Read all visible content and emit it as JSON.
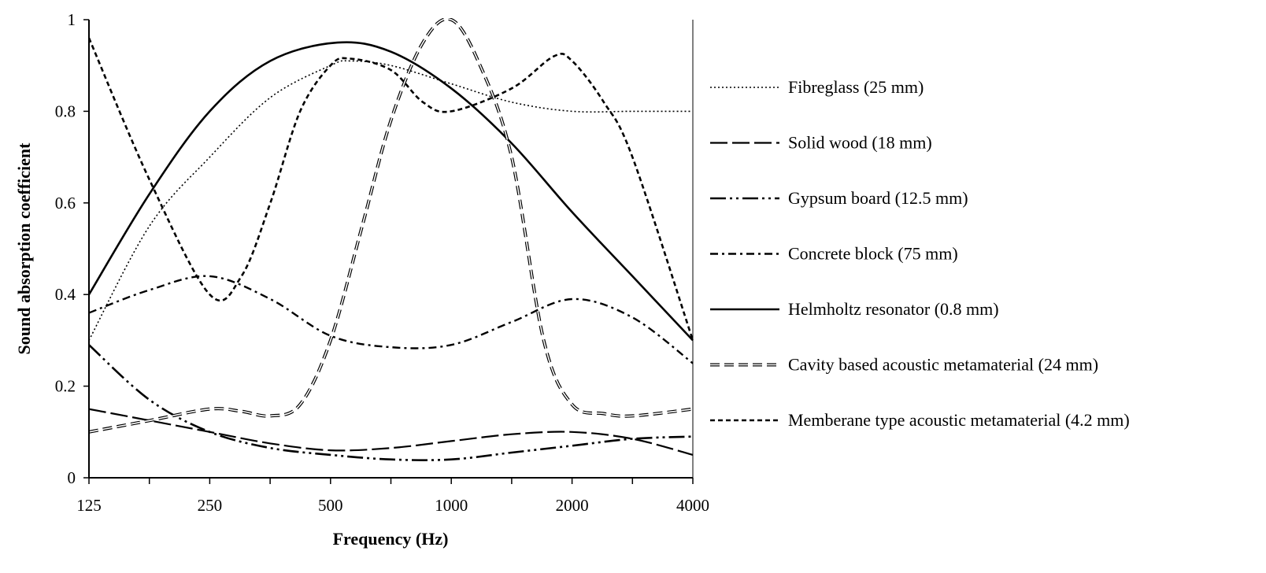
{
  "chart_data": {
    "type": "line",
    "title": "",
    "xlabel": "Frequency (Hz)",
    "ylabel": "Sound absorption coefficient",
    "x_scale": "log2",
    "xlim": [
      125,
      4000
    ],
    "ylim": [
      0,
      1
    ],
    "x_ticks": [
      125,
      250,
      500,
      1000,
      2000,
      4000
    ],
    "y_ticks": [
      0,
      0.2,
      0.4,
      0.6,
      0.8,
      1
    ],
    "y_tick_labels": [
      "0",
      "0.2",
      "0.4",
      "0.6",
      "0.8",
      "1"
    ],
    "grid": false,
    "legend_position": "right",
    "series": [
      {
        "name": "Fibreglass (25 mm)",
        "style": "dotted",
        "x": [
          125,
          177,
          250,
          354,
          500,
          560,
          707,
          1000,
          1414,
          2000,
          2828,
          4000
        ],
        "y": [
          0.3,
          0.55,
          0.7,
          0.83,
          0.9,
          0.91,
          0.9,
          0.86,
          0.82,
          0.8,
          0.8,
          0.8
        ]
      },
      {
        "name": "Solid wood (18 mm)",
        "style": "long-dash",
        "x": [
          125,
          177,
          250,
          354,
          500,
          707,
          1000,
          1414,
          2000,
          2828,
          4000
        ],
        "y": [
          0.15,
          0.125,
          0.1,
          0.075,
          0.06,
          0.065,
          0.08,
          0.095,
          0.1,
          0.085,
          0.05
        ]
      },
      {
        "name": "Gypsum board (12.5 mm)",
        "style": "dash-dot-dot",
        "x": [
          125,
          177,
          250,
          354,
          500,
          707,
          1000,
          1414,
          2000,
          2828,
          4000
        ],
        "y": [
          0.29,
          0.17,
          0.1,
          0.065,
          0.05,
          0.04,
          0.04,
          0.055,
          0.07,
          0.085,
          0.09
        ]
      },
      {
        "name": "Concrete block (75 mm)",
        "style": "dash-dot",
        "x": [
          125,
          177,
          250,
          354,
          500,
          707,
          1000,
          1414,
          2000,
          2828,
          4000
        ],
        "y": [
          0.36,
          0.41,
          0.44,
          0.39,
          0.31,
          0.285,
          0.29,
          0.34,
          0.39,
          0.35,
          0.25
        ]
      },
      {
        "name": "Helmholtz resonator (0.8 mm)",
        "style": "solid",
        "x": [
          125,
          177,
          250,
          354,
          520,
          707,
          1000,
          1414,
          2000,
          2828,
          4000
        ],
        "y": [
          0.4,
          0.62,
          0.8,
          0.91,
          0.95,
          0.93,
          0.85,
          0.73,
          0.58,
          0.44,
          0.3
        ]
      },
      {
        "name": "Cavity based acoustic metamaterial (24 mm)",
        "style": "double-dash",
        "x": [
          125,
          177,
          250,
          300,
          354,
          420,
          500,
          600,
          707,
          850,
          1000,
          1180,
          1414,
          1700,
          2000,
          2400,
          2828,
          4000
        ],
        "y": [
          0.1,
          0.125,
          0.15,
          0.145,
          0.135,
          0.16,
          0.3,
          0.55,
          0.78,
          0.95,
          1.0,
          0.9,
          0.7,
          0.3,
          0.16,
          0.14,
          0.135,
          0.15
        ]
      },
      {
        "name": "Memberane type acoustic metamaterial (4.2 mm)",
        "style": "short-dash",
        "x": [
          125,
          177,
          250,
          300,
          354,
          420,
          500,
          560,
          707,
          850,
          1000,
          1414,
          1800,
          2000,
          2400,
          2828,
          4000
        ],
        "y": [
          0.96,
          0.65,
          0.4,
          0.44,
          0.6,
          0.8,
          0.9,
          0.915,
          0.89,
          0.82,
          0.8,
          0.85,
          0.92,
          0.91,
          0.82,
          0.7,
          0.3
        ]
      }
    ]
  }
}
